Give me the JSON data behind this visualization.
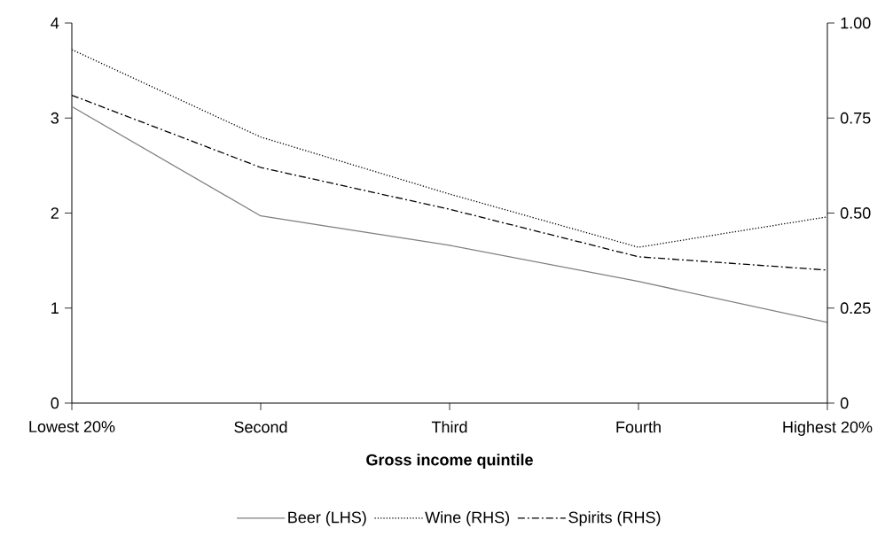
{
  "chart_data": {
    "type": "line",
    "xlabel": "Gross income quintile",
    "categories": [
      "Lowest 20%",
      "Second",
      "Third",
      "Fourth",
      "Highest 20%"
    ],
    "series": [
      {
        "name": "Beer (LHS)",
        "color": "#808080",
        "line_style": "solid",
        "values": [
          3.12,
          1.97,
          1.66,
          1.28,
          0.85
        ]
      },
      {
        "name": "Wine (RHS)",
        "color": "#000000",
        "line_style": "dotted",
        "axis": "y2",
        "values": [
          0.93,
          0.7,
          0.55,
          0.41,
          0.49
        ]
      },
      {
        "name": "Spirits (RHS)",
        "color": "#000000",
        "line_style": "dashdot",
        "axis": "y2",
        "values": [
          0.81,
          0.62,
          0.51,
          0.385,
          0.35
        ]
      }
    ],
    "ylim": [
      0,
      4
    ],
    "yticks": [
      0,
      1,
      2,
      3,
      4
    ],
    "y2lim": [
      0,
      1
    ],
    "y2ticks": [
      0,
      0.25,
      {
        "value": 0.5,
        "label": "0.50"
      },
      {
        "value": 0.75,
        "label": "0.75"
      },
      {
        "value": 1,
        "label": "1.00"
      }
    ],
    "legend": "bottom",
    "marker": "none"
  }
}
